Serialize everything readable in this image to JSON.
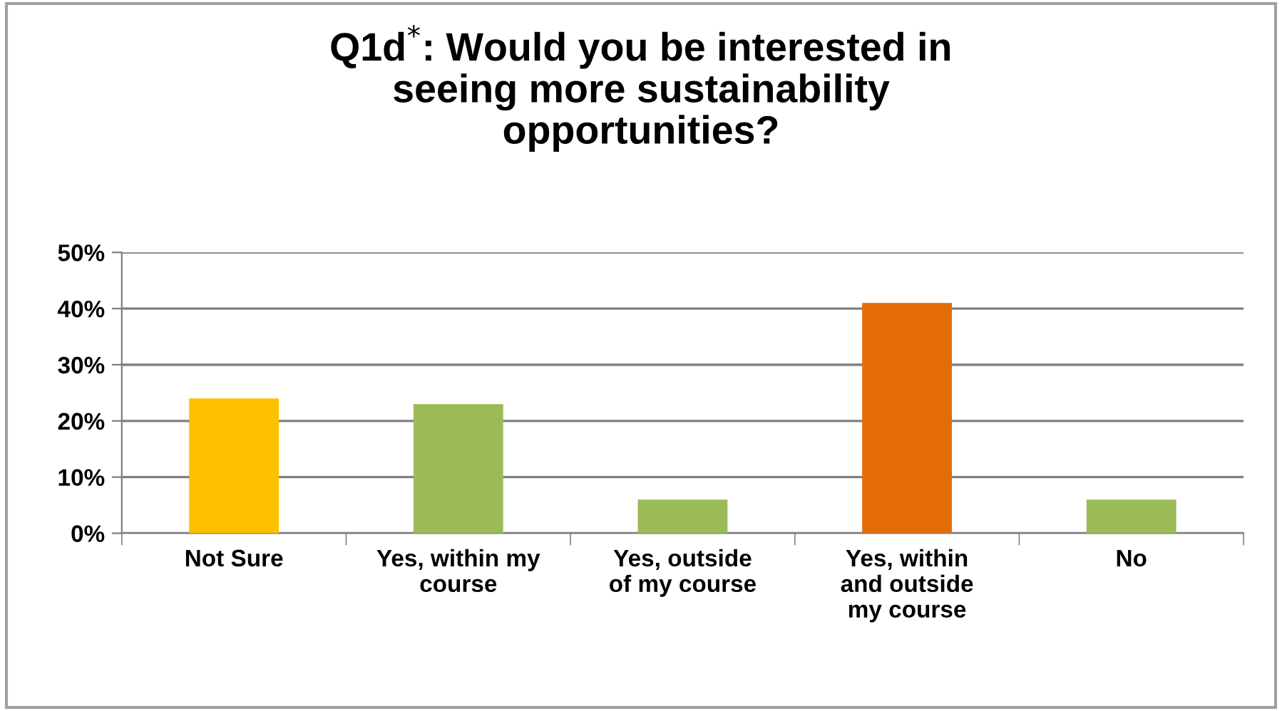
{
  "chart_data": {
    "type": "bar",
    "title": "Q1d$^{*}$: Would you be interested in\nseeing more sustainability\nopportunities?",
    "categories": [
      "Not Sure",
      "Yes, within my\ncourse",
      "Yes, outside\nof my course",
      "Yes, within\nand outside\nmy course",
      "No"
    ],
    "values": [
      24,
      23,
      6,
      41,
      6
    ],
    "colors": [
      "#ffc000",
      "#9bbb59",
      "#9bbb59",
      "#e36c09",
      "#9bbb59"
    ],
    "ylim": [
      0,
      50
    ],
    "yticks": [
      {
        "value": 0,
        "label": "0%"
      },
      {
        "value": 10,
        "label": "10%"
      },
      {
        "value": 20,
        "label": "20%"
      },
      {
        "value": 30,
        "label": "30%"
      },
      {
        "value": 40,
        "label": "40%"
      },
      {
        "value": 50,
        "label": "50%"
      }
    ],
    "grid": "y",
    "legend": false
  }
}
